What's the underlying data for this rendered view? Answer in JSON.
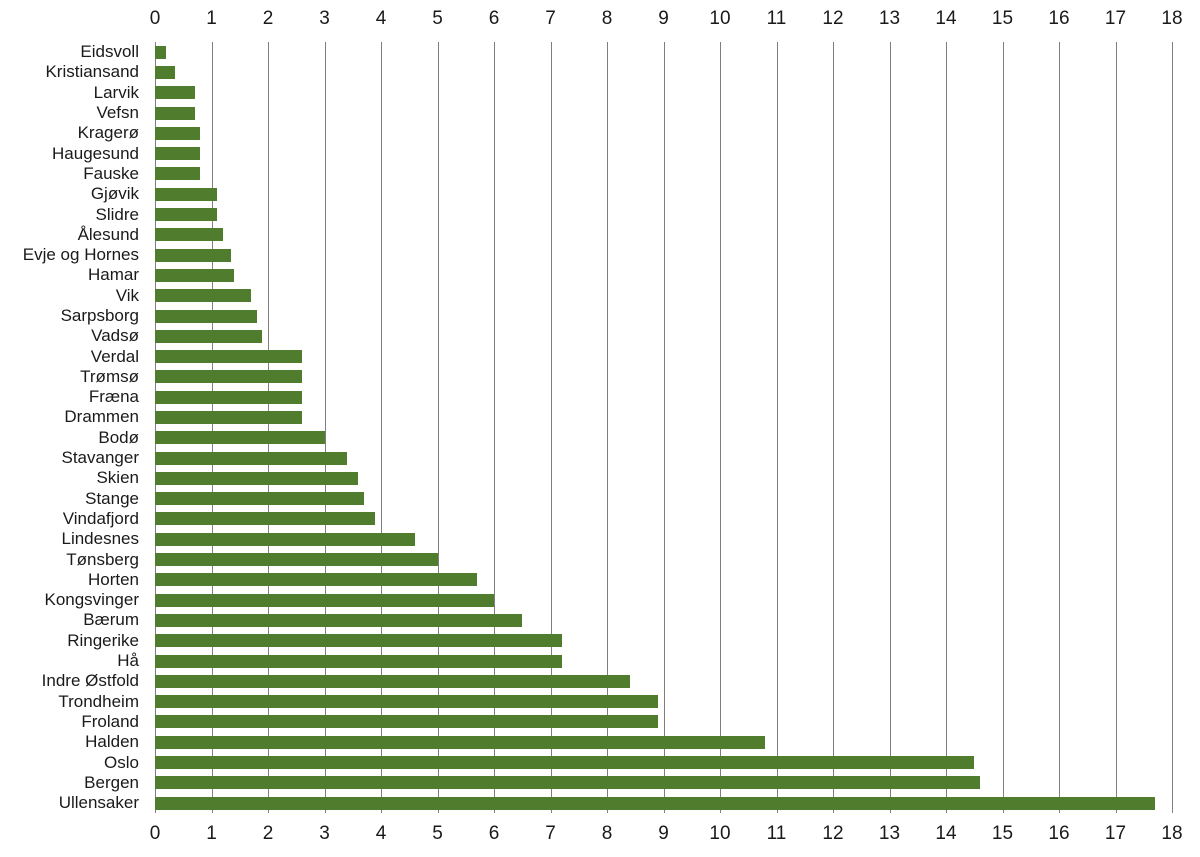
{
  "chart_data": {
    "type": "bar",
    "orientation": "horizontal",
    "title": "",
    "xlabel": "",
    "ylabel": "",
    "xlim": [
      0,
      18
    ],
    "x_ticks": [
      0,
      1,
      2,
      3,
      4,
      5,
      6,
      7,
      8,
      9,
      10,
      11,
      12,
      13,
      14,
      15,
      16,
      17,
      18
    ],
    "grid": true,
    "bar_color": "#4f7d2d",
    "gridline_color": "#7f7f7f",
    "categories_top_to_bottom": [
      "Eidsvoll",
      "Kristiansand",
      "Larvik",
      "Vefsn",
      "Kragerø",
      "Haugesund",
      "Fauske",
      "Gjøvik",
      "Slidre",
      "Ålesund",
      "Evje og Hornes",
      "Hamar",
      "Vik",
      "Sarpsborg",
      "Vadsø",
      "Verdal",
      "Trømsø",
      "Fræna",
      "Drammen",
      "Bodø",
      "Stavanger",
      "Skien",
      "Stange",
      "Vindafjord",
      "Lindesnes",
      "Tønsberg",
      "Horten",
      "Kongsvinger",
      "Bærum",
      "Ringerike",
      "Hå",
      "Indre Østfold",
      "Trondheim",
      "Froland",
      "Halden",
      "Oslo",
      "Bergen",
      "Ullensaker"
    ],
    "values": [
      0.2,
      0.35,
      0.7,
      0.7,
      0.8,
      0.8,
      0.8,
      1.1,
      1.1,
      1.2,
      1.35,
      1.4,
      1.7,
      1.8,
      1.9,
      2.6,
      2.6,
      2.6,
      2.6,
      3.0,
      3.4,
      3.6,
      3.7,
      3.9,
      4.6,
      5.0,
      5.7,
      6.0,
      6.5,
      7.2,
      7.2,
      8.4,
      8.9,
      8.9,
      10.8,
      14.5,
      14.6,
      17.7
    ]
  }
}
